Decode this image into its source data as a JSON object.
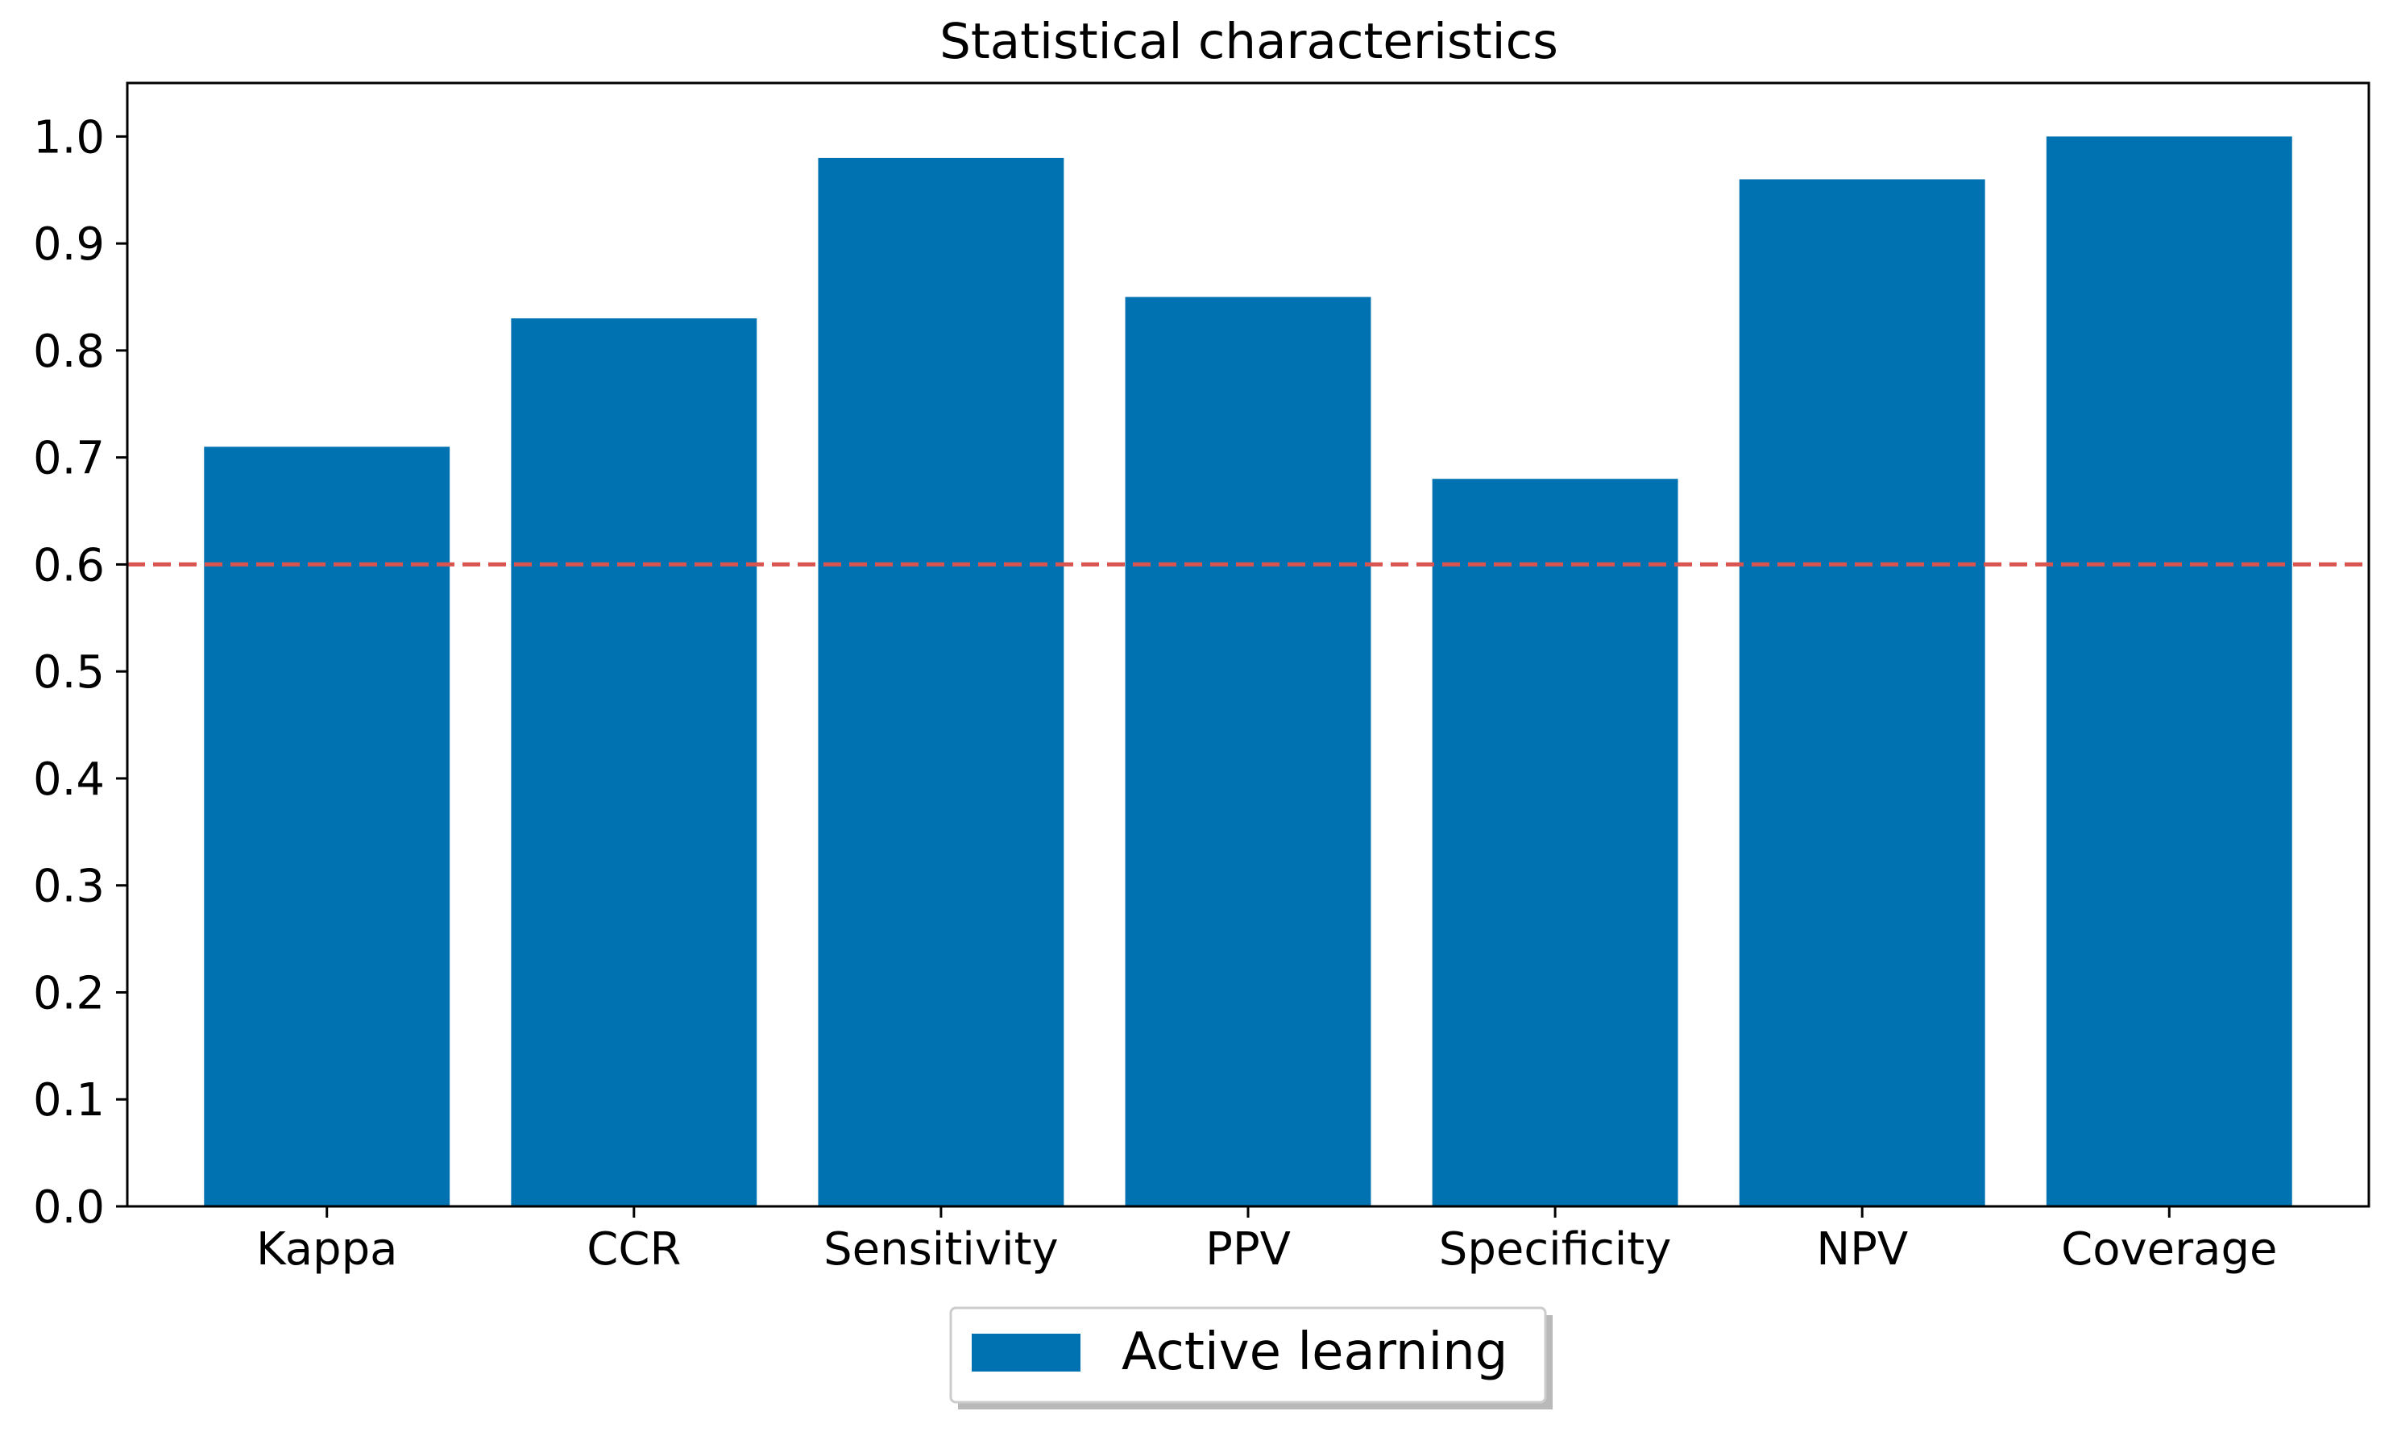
{
  "chart_data": {
    "type": "bar",
    "title": "Statistical characteristics",
    "xlabel": "",
    "ylabel": "",
    "categories": [
      "Kappa",
      "CCR",
      "Sensitivity",
      "PPV",
      "Specificity",
      "NPV",
      "Coverage"
    ],
    "series": [
      {
        "name": "Active learning",
        "values": [
          0.71,
          0.83,
          0.98,
          0.85,
          0.68,
          0.96,
          1.0
        ],
        "color": "#0072b2"
      }
    ],
    "ylim": [
      0,
      1.05
    ],
    "yticks": [
      "0.0",
      "0.1",
      "0.2",
      "0.3",
      "0.4",
      "0.5",
      "0.6",
      "0.7",
      "0.8",
      "0.9",
      "1.0"
    ],
    "reference_line": {
      "y": 0.6,
      "style": "dashed",
      "color": "#d9534f"
    },
    "grid": false,
    "legend": {
      "placement": "bottom-center",
      "shadow": true
    }
  }
}
